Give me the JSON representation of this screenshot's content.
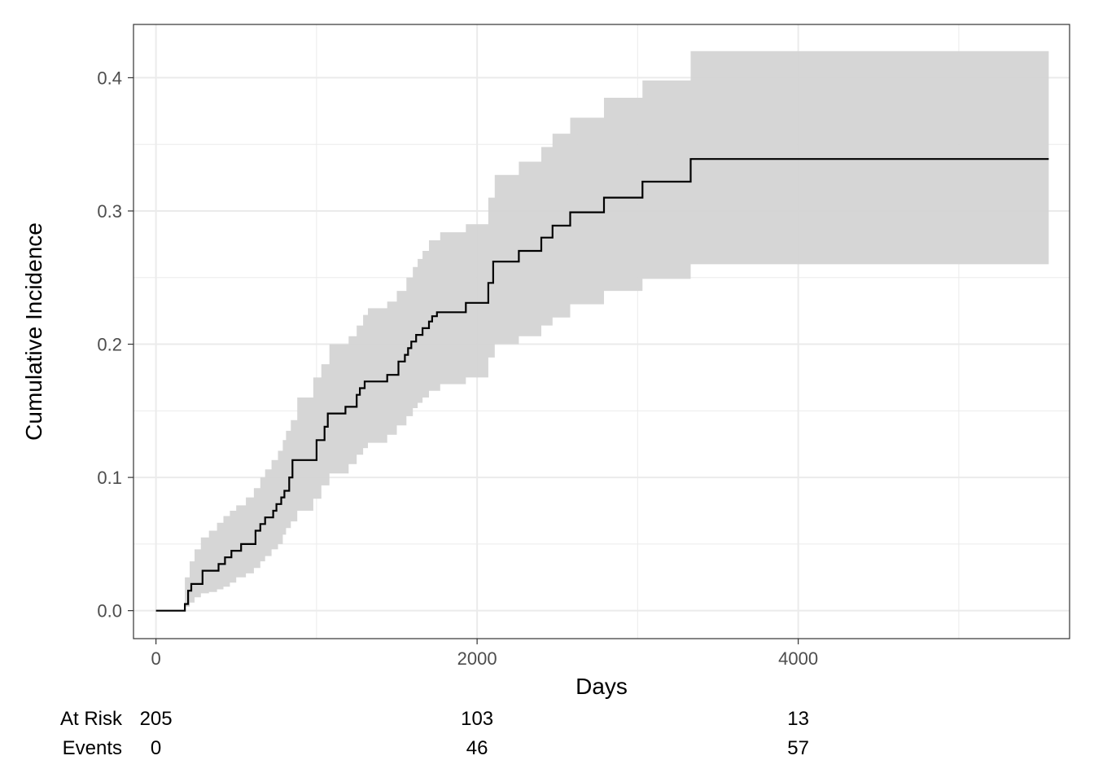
{
  "chart_data": {
    "type": "line",
    "xlabel": "Days",
    "ylabel": "Cumulative Incidence",
    "xlim": [
      -140,
      5690
    ],
    "ylim": [
      -0.021,
      0.44
    ],
    "x_ticks": [
      0,
      2000,
      4000
    ],
    "x_tick_labels": [
      "0",
      "2000",
      "4000"
    ],
    "y_ticks": [
      0.0,
      0.1,
      0.2,
      0.3,
      0.4
    ],
    "y_tick_labels": [
      "0.0",
      "0.1",
      "0.2",
      "0.3",
      "0.4"
    ],
    "grid": true,
    "legend": "none",
    "colors": {
      "line": "#000000",
      "band": "#d4d4d4",
      "grid": "#ebebeb",
      "panel_border": "#333333"
    },
    "series": [
      {
        "type": "step",
        "x": [
          0,
          180,
          200,
          220,
          240,
          290,
          390,
          430,
          470,
          530,
          620,
          650,
          680,
          730,
          750,
          780,
          800,
          830,
          850,
          880,
          1000,
          1050,
          1070,
          1100,
          1180,
          1250,
          1270,
          1300,
          1440,
          1510,
          1550,
          1570,
          1590,
          1620,
          1660,
          1700,
          1720,
          1750,
          1930,
          2070,
          2100,
          2260,
          2400,
          2470,
          2580,
          2790,
          3030,
          3330,
          5560
        ],
        "y": [
          0.0,
          0.005,
          0.015,
          0.02,
          0.02,
          0.03,
          0.035,
          0.04,
          0.045,
          0.05,
          0.06,
          0.065,
          0.07,
          0.075,
          0.08,
          0.085,
          0.09,
          0.1,
          0.113,
          0.113,
          0.128,
          0.138,
          0.148,
          0.148,
          0.153,
          0.162,
          0.167,
          0.172,
          0.177,
          0.187,
          0.192,
          0.197,
          0.202,
          0.207,
          0.212,
          0.217,
          0.221,
          0.224,
          0.231,
          0.246,
          0.262,
          0.27,
          0.28,
          0.289,
          0.299,
          0.31,
          0.322,
          0.339,
          0.339
        ]
      }
    ],
    "confidence_band": {
      "x": [
        180,
        210,
        240,
        280,
        330,
        380,
        420,
        460,
        500,
        560,
        610,
        650,
        680,
        720,
        760,
        790,
        810,
        840,
        880,
        980,
        1030,
        1080,
        1200,
        1250,
        1290,
        1320,
        1440,
        1500,
        1560,
        1600,
        1630,
        1660,
        1700,
        1770,
        1930,
        2070,
        2110,
        2260,
        2400,
        2470,
        2580,
        2790,
        3030,
        3330,
        5560
      ],
      "lower": [
        0.003,
        0.006,
        0.01,
        0.013,
        0.014,
        0.016,
        0.018,
        0.021,
        0.025,
        0.028,
        0.032,
        0.037,
        0.041,
        0.046,
        0.05,
        0.057,
        0.062,
        0.067,
        0.075,
        0.084,
        0.094,
        0.103,
        0.11,
        0.117,
        0.122,
        0.126,
        0.132,
        0.139,
        0.146,
        0.152,
        0.156,
        0.16,
        0.165,
        0.17,
        0.175,
        0.19,
        0.2,
        0.206,
        0.214,
        0.22,
        0.23,
        0.24,
        0.249,
        0.26,
        0.26
      ],
      "upper": [
        0.025,
        0.037,
        0.046,
        0.055,
        0.06,
        0.066,
        0.071,
        0.075,
        0.079,
        0.085,
        0.092,
        0.1,
        0.106,
        0.113,
        0.12,
        0.128,
        0.135,
        0.143,
        0.16,
        0.175,
        0.185,
        0.2,
        0.206,
        0.214,
        0.222,
        0.227,
        0.232,
        0.24,
        0.25,
        0.258,
        0.264,
        0.27,
        0.278,
        0.284,
        0.29,
        0.31,
        0.327,
        0.337,
        0.348,
        0.358,
        0.37,
        0.385,
        0.398,
        0.42,
        0.42
      ]
    },
    "risk_table": {
      "rows": [
        {
          "label": "At Risk",
          "values": [
            "205",
            "103",
            "13"
          ]
        },
        {
          "label": "Events",
          "values": [
            "0",
            "46",
            "57"
          ]
        }
      ],
      "x": [
        0,
        2000,
        4000
      ]
    }
  }
}
